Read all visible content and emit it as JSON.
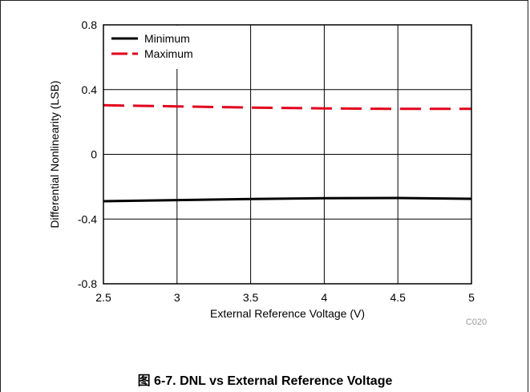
{
  "figure": {
    "caption": "图 6-7. DNL vs External Reference Voltage",
    "code": "C020"
  },
  "chart_data": {
    "type": "line",
    "title": "",
    "xlabel": "External Reference Voltage (V)",
    "ylabel": "Differential Nonlinearity (LSB)",
    "xlim": [
      2.5,
      5
    ],
    "ylim": [
      -0.8,
      0.8
    ],
    "xticks": [
      2.5,
      3,
      3.5,
      4,
      4.5,
      5
    ],
    "yticks": [
      -0.8,
      -0.4,
      0,
      0.4,
      0.8
    ],
    "xtick_labels": [
      "2.5",
      "3",
      "3.5",
      "4",
      "4.5",
      "5"
    ],
    "ytick_labels": [
      "-0.8",
      "-0.4",
      "0",
      "0.4",
      "0.8"
    ],
    "grid": true,
    "legend_position": "top-left",
    "series": [
      {
        "name": "Minimum",
        "color": "#000000",
        "dash": "solid",
        "x": [
          2.5,
          3,
          3.5,
          4,
          4.5,
          5
        ],
        "y": [
          -0.29,
          -0.283,
          -0.276,
          -0.271,
          -0.27,
          -0.275
        ]
      },
      {
        "name": "Maximum",
        "color": "#e3001b",
        "dash": "dashed",
        "x": [
          2.5,
          3,
          3.5,
          4,
          4.5,
          5
        ],
        "y": [
          0.303,
          0.296,
          0.289,
          0.284,
          0.281,
          0.281
        ]
      }
    ]
  }
}
